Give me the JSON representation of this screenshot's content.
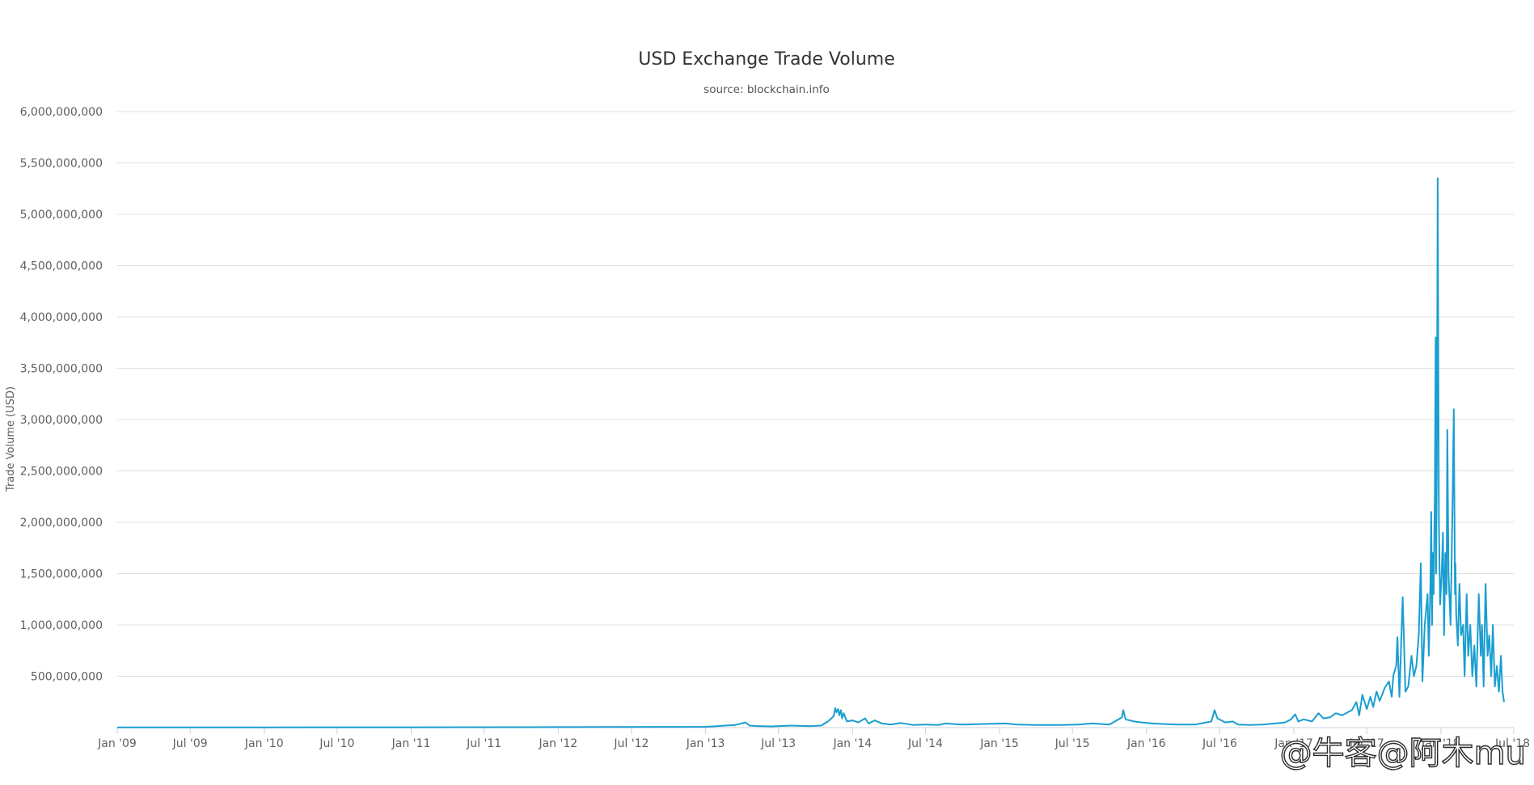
{
  "chart_data": {
    "type": "line",
    "title": "USD Exchange Trade Volume",
    "subtitle": "source: blockchain.info",
    "xlabel": "",
    "ylabel": "Trade Volume (USD)",
    "ylim": [
      0,
      6000000000
    ],
    "yticks": [
      {
        "value": 500000000,
        "label": "500,000,000"
      },
      {
        "value": 1000000000,
        "label": "1,000,000,000"
      },
      {
        "value": 1500000000,
        "label": "1,500,000,000"
      },
      {
        "value": 2000000000,
        "label": "2,000,000,000"
      },
      {
        "value": 2500000000,
        "label": "2,500,000,000"
      },
      {
        "value": 3000000000,
        "label": "3,000,000,000"
      },
      {
        "value": 3500000000,
        "label": "3,500,000,000"
      },
      {
        "value": 4000000000,
        "label": "4,000,000,000"
      },
      {
        "value": 4500000000,
        "label": "4,500,000,000"
      },
      {
        "value": 5000000000,
        "label": "5,000,000,000"
      },
      {
        "value": 5500000000,
        "label": "5,500,000,000"
      },
      {
        "value": 6000000000,
        "label": "6,000,000,000"
      }
    ],
    "xlim": [
      "2009-01-01",
      "2018-07-01"
    ],
    "xticks": [
      {
        "date": "2009-01-01",
        "label": "Jan '09"
      },
      {
        "date": "2009-07-01",
        "label": "Jul '09"
      },
      {
        "date": "2010-01-01",
        "label": "Jan '10"
      },
      {
        "date": "2010-07-01",
        "label": "Jul '10"
      },
      {
        "date": "2011-01-01",
        "label": "Jan '11"
      },
      {
        "date": "2011-07-01",
        "label": "Jul '11"
      },
      {
        "date": "2012-01-01",
        "label": "Jan '12"
      },
      {
        "date": "2012-07-01",
        "label": "Jul '12"
      },
      {
        "date": "2013-01-01",
        "label": "Jan '13"
      },
      {
        "date": "2013-07-01",
        "label": "Jul '13"
      },
      {
        "date": "2014-01-01",
        "label": "Jan '14"
      },
      {
        "date": "2014-07-01",
        "label": "Jul '14"
      },
      {
        "date": "2015-01-01",
        "label": "Jan '15"
      },
      {
        "date": "2015-07-01",
        "label": "Jul '15"
      },
      {
        "date": "2016-01-01",
        "label": "Jan '16"
      },
      {
        "date": "2016-07-01",
        "label": "Jul '16"
      },
      {
        "date": "2017-01-01",
        "label": "Jan '17"
      },
      {
        "date": "2017-07-01",
        "label": "Jul '17"
      },
      {
        "date": "2018-01-01",
        "label": "Jan '18"
      },
      {
        "date": "2018-07-01",
        "label": "Jul '18"
      }
    ],
    "grid": true,
    "legend": "none",
    "series_color": "#1a9ed0",
    "series": [
      {
        "x": [
          "2009-01-01",
          "2010-01-01",
          "2011-01-01",
          "2012-01-01",
          "2013-01-01",
          "2013-03-15",
          "2013-04-10",
          "2013-04-20",
          "2013-05-10",
          "2013-06-15",
          "2013-08-01",
          "2013-09-15",
          "2013-10-15",
          "2013-11-01",
          "2013-11-15",
          "2013-11-19",
          "2013-11-22",
          "2013-11-26",
          "2013-11-29",
          "2013-12-03",
          "2013-12-06",
          "2013-12-10",
          "2013-12-18",
          "2014-01-01",
          "2014-01-15",
          "2014-02-01",
          "2014-02-10",
          "2014-02-25",
          "2014-03-15",
          "2014-04-05",
          "2014-05-01",
          "2014-06-01",
          "2014-07-01",
          "2014-08-01",
          "2014-08-20",
          "2014-10-01",
          "2014-11-15",
          "2015-01-14",
          "2015-02-15",
          "2015-04-01",
          "2015-06-01",
          "2015-07-15",
          "2015-08-20",
          "2015-10-01",
          "2015-11-01",
          "2015-11-04",
          "2015-11-10",
          "2015-12-01",
          "2015-12-20",
          "2016-01-15",
          "2016-02-15",
          "2016-03-15",
          "2016-05-01",
          "2016-06-10",
          "2016-06-18",
          "2016-06-25",
          "2016-07-15",
          "2016-08-02",
          "2016-08-15",
          "2016-09-15",
          "2016-10-15",
          "2016-11-15",
          "2016-12-10",
          "2016-12-25",
          "2017-01-04",
          "2017-01-12",
          "2017-01-25",
          "2017-02-15",
          "2017-03-03",
          "2017-03-15",
          "2017-04-01",
          "2017-04-15",
          "2017-05-01",
          "2017-05-15",
          "2017-05-25",
          "2017-06-05",
          "2017-06-12",
          "2017-06-20",
          "2017-07-01",
          "2017-07-10",
          "2017-07-17",
          "2017-07-25",
          "2017-08-02",
          "2017-08-15",
          "2017-08-25",
          "2017-09-01",
          "2017-09-05",
          "2017-09-12",
          "2017-09-15",
          "2017-09-20",
          "2017-09-28",
          "2017-10-05",
          "2017-10-12",
          "2017-10-20",
          "2017-10-26",
          "2017-11-01",
          "2017-11-07",
          "2017-11-12",
          "2017-11-16",
          "2017-11-22",
          "2017-11-29",
          "2017-12-02",
          "2017-12-06",
          "2017-12-08",
          "2017-12-10",
          "2017-12-12",
          "2017-12-14",
          "2017-12-17",
          "2017-12-19",
          "2017-12-20",
          "2017-12-22",
          "2017-12-24",
          "2017-12-27",
          "2017-12-30",
          "2018-01-03",
          "2018-01-06",
          "2018-01-09",
          "2018-01-12",
          "2018-01-15",
          "2018-01-17",
          "2018-01-20",
          "2018-01-25",
          "2018-01-30",
          "2018-02-02",
          "2018-02-05",
          "2018-02-06",
          "2018-02-08",
          "2018-02-12",
          "2018-02-16",
          "2018-02-20",
          "2018-02-25",
          "2018-03-01",
          "2018-03-06",
          "2018-03-10",
          "2018-03-15",
          "2018-03-20",
          "2018-03-25",
          "2018-03-30",
          "2018-04-05",
          "2018-04-10",
          "2018-04-13",
          "2018-04-17",
          "2018-04-22",
          "2018-04-27",
          "2018-05-01",
          "2018-05-06",
          "2018-05-10",
          "2018-05-15",
          "2018-05-20",
          "2018-05-25",
          "2018-05-30",
          "2018-06-03",
          "2018-06-07"
        ],
        "y": [
          2000000,
          2000000,
          3000000,
          5000000,
          8000000,
          25000000,
          50000000,
          20000000,
          15000000,
          12000000,
          20000000,
          15000000,
          20000000,
          60000000,
          110000000,
          190000000,
          150000000,
          180000000,
          120000000,
          170000000,
          90000000,
          140000000,
          60000000,
          70000000,
          50000000,
          90000000,
          40000000,
          70000000,
          40000000,
          30000000,
          45000000,
          25000000,
          30000000,
          25000000,
          40000000,
          30000000,
          35000000,
          40000000,
          30000000,
          25000000,
          25000000,
          30000000,
          40000000,
          30000000,
          100000000,
          170000000,
          80000000,
          60000000,
          50000000,
          40000000,
          35000000,
          30000000,
          30000000,
          60000000,
          170000000,
          90000000,
          50000000,
          60000000,
          30000000,
          25000000,
          30000000,
          40000000,
          50000000,
          80000000,
          130000000,
          60000000,
          80000000,
          60000000,
          140000000,
          90000000,
          100000000,
          140000000,
          120000000,
          150000000,
          170000000,
          250000000,
          120000000,
          320000000,
          180000000,
          300000000,
          200000000,
          350000000,
          260000000,
          390000000,
          450000000,
          300000000,
          510000000,
          600000000,
          880000000,
          300000000,
          1270000000,
          350000000,
          400000000,
          700000000,
          500000000,
          600000000,
          900000000,
          1600000000,
          450000000,
          1000000000,
          1300000000,
          700000000,
          1400000000,
          2100000000,
          1000000000,
          1700000000,
          1300000000,
          2300000000,
          3800000000,
          1500000000,
          2600000000,
          5350000000,
          2000000000,
          1200000000,
          1500000000,
          1900000000,
          900000000,
          1700000000,
          1300000000,
          2900000000,
          1500000000,
          1000000000,
          2200000000,
          3100000000,
          1300000000,
          1600000000,
          1100000000,
          800000000,
          1400000000,
          900000000,
          1000000000,
          500000000,
          1300000000,
          700000000,
          1000000000,
          500000000,
          800000000,
          400000000,
          1300000000,
          700000000,
          1000000000,
          400000000,
          1400000000,
          700000000,
          900000000,
          500000000,
          1000000000,
          400000000,
          600000000,
          350000000,
          700000000,
          350000000,
          250000000
        ]
      }
    ]
  },
  "watermark": "@牛客@阿木mu"
}
